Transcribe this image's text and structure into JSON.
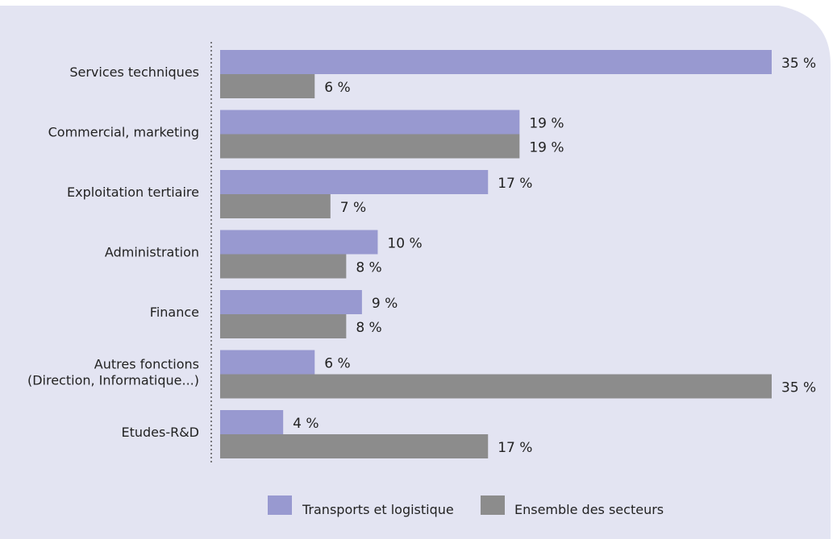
{
  "colors": {
    "background": "#e3e4f2",
    "series_1": "#9899d0",
    "series_2": "#8c8c8c",
    "axis": "#555555",
    "text": "#222222"
  },
  "chart_data": {
    "type": "bar",
    "orientation": "horizontal",
    "categories": [
      [
        "Services techniques"
      ],
      [
        "Commercial, marketing"
      ],
      [
        "Exploitation tertiaire"
      ],
      [
        "Administration"
      ],
      [
        "Finance"
      ],
      [
        "Autres fonctions",
        "(Direction, Informatique...)"
      ],
      [
        "Etudes-R&D"
      ]
    ],
    "series": [
      {
        "name": "Transports et logistique",
        "values": [
          35,
          19,
          17,
          10,
          9,
          6,
          4
        ],
        "labels": [
          "35 %",
          "19 %",
          "17 %",
          "10 %",
          "9 %",
          "6 %",
          "4 %"
        ]
      },
      {
        "name": "Ensemble des secteurs",
        "values": [
          6,
          19,
          7,
          8,
          8,
          35,
          17
        ],
        "labels": [
          "6 %",
          "19 %",
          "7 %",
          "8 %",
          "8 %",
          "35 %",
          "17 %"
        ]
      }
    ],
    "xlim": [
      0,
      35
    ],
    "unit": "%",
    "grid": false,
    "legend_position": "bottom",
    "title": "",
    "xlabel": "",
    "ylabel": ""
  }
}
